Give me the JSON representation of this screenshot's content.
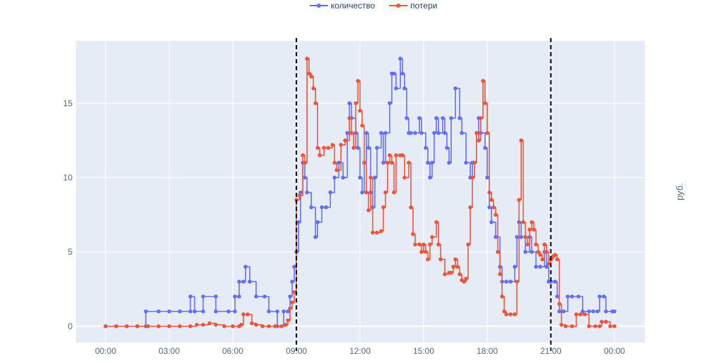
{
  "chart_data": {
    "type": "line",
    "xlabel": "",
    "ylabel": "",
    "y2label": "руб.",
    "xlim": [
      0,
      24
    ],
    "ylim": [
      -1.1,
      19.2
    ],
    "x_ticks": [
      {
        "value": 0,
        "label": "00:00"
      },
      {
        "value": 3,
        "label": "03:00"
      },
      {
        "value": 6,
        "label": "06:00"
      },
      {
        "value": 9,
        "label": "09:00"
      },
      {
        "value": 12,
        "label": "12:00"
      },
      {
        "value": 15,
        "label": "15:00"
      },
      {
        "value": 18,
        "label": "18:00"
      },
      {
        "value": 21,
        "label": "21:00"
      },
      {
        "value": 24,
        "label": "00:00"
      }
    ],
    "y_ticks": [
      0,
      5,
      10,
      15
    ],
    "grid": true,
    "legend": "top-center",
    "vertical_lines": [
      9,
      21
    ],
    "series": [
      {
        "name": "количество",
        "color": "#636efa",
        "points": [
          [
            0,
            0
          ],
          [
            0.5,
            0
          ],
          [
            1,
            0
          ],
          [
            1.5,
            0
          ],
          [
            1.9,
            0
          ],
          [
            1.9,
            1
          ],
          [
            2.5,
            1
          ],
          [
            3,
            1
          ],
          [
            3.5,
            1
          ],
          [
            4,
            1
          ],
          [
            4,
            2
          ],
          [
            4.2,
            1
          ],
          [
            4.6,
            1
          ],
          [
            4.6,
            2
          ],
          [
            5.2,
            2
          ],
          [
            5.2,
            1
          ],
          [
            5.8,
            1
          ],
          [
            6.1,
            1
          ],
          [
            6.1,
            2
          ],
          [
            6.3,
            2
          ],
          [
            6.3,
            3
          ],
          [
            6.5,
            3
          ],
          [
            6.6,
            4
          ],
          [
            6.8,
            3
          ],
          [
            7.1,
            2
          ],
          [
            7.5,
            2
          ],
          [
            7.7,
            1
          ],
          [
            8.1,
            1
          ],
          [
            8.1,
            0
          ],
          [
            8.3,
            0
          ],
          [
            8.4,
            1
          ],
          [
            8.6,
            1
          ],
          [
            8.7,
            2
          ],
          [
            8.8,
            3
          ],
          [
            8.9,
            4
          ],
          [
            9.0,
            5
          ],
          [
            9.1,
            7
          ],
          [
            9.2,
            9
          ],
          [
            9.3,
            11
          ],
          [
            9.4,
            10
          ],
          [
            9.5,
            9
          ],
          [
            9.7,
            8
          ],
          [
            9.9,
            6
          ],
          [
            10.0,
            7
          ],
          [
            10.2,
            8
          ],
          [
            10.4,
            8
          ],
          [
            10.6,
            9
          ],
          [
            10.8,
            10
          ],
          [
            11.0,
            11
          ],
          [
            11.2,
            10
          ],
          [
            11.4,
            13
          ],
          [
            11.5,
            15
          ],
          [
            11.6,
            14
          ],
          [
            11.8,
            13
          ],
          [
            11.9,
            12
          ],
          [
            12.0,
            10
          ],
          [
            12.1,
            9
          ],
          [
            12.2,
            11
          ],
          [
            12.3,
            13
          ],
          [
            12.4,
            12
          ],
          [
            12.5,
            9
          ],
          [
            12.6,
            8
          ],
          [
            12.7,
            10
          ],
          [
            12.8,
            12
          ],
          [
            13.0,
            13
          ],
          [
            13.1,
            11
          ],
          [
            13.2,
            13
          ],
          [
            13.4,
            15
          ],
          [
            13.5,
            17
          ],
          [
            13.6,
            17
          ],
          [
            13.7,
            16
          ],
          [
            13.9,
            18
          ],
          [
            14.0,
            17
          ],
          [
            14.1,
            16
          ],
          [
            14.2,
            14
          ],
          [
            14.3,
            13
          ],
          [
            14.4,
            13
          ],
          [
            14.6,
            13
          ],
          [
            14.8,
            14
          ],
          [
            14.9,
            13
          ],
          [
            15.1,
            12
          ],
          [
            15.2,
            11
          ],
          [
            15.3,
            10
          ],
          [
            15.4,
            11
          ],
          [
            15.5,
            13
          ],
          [
            15.6,
            14
          ],
          [
            15.7,
            13
          ],
          [
            15.9,
            14
          ],
          [
            16.0,
            13
          ],
          [
            16.1,
            12
          ],
          [
            16.2,
            11
          ],
          [
            16.3,
            14
          ],
          [
            16.5,
            16
          ],
          [
            16.7,
            14
          ],
          [
            16.8,
            13
          ],
          [
            17.0,
            11
          ],
          [
            17.2,
            10
          ],
          [
            17.3,
            11
          ],
          [
            17.5,
            13
          ],
          [
            17.6,
            14
          ],
          [
            17.7,
            13
          ],
          [
            17.9,
            12
          ],
          [
            18.0,
            10
          ],
          [
            18.1,
            8
          ],
          [
            18.2,
            7
          ],
          [
            18.4,
            6
          ],
          [
            18.6,
            4
          ],
          [
            18.7,
            3
          ],
          [
            18.9,
            3
          ],
          [
            19.1,
            3
          ],
          [
            19.3,
            4
          ],
          [
            19.4,
            6
          ],
          [
            19.5,
            7
          ],
          [
            19.6,
            6
          ],
          [
            19.8,
            5
          ],
          [
            20.0,
            6
          ],
          [
            20.1,
            5
          ],
          [
            20.3,
            4
          ],
          [
            20.5,
            4
          ],
          [
            20.7,
            5
          ],
          [
            20.8,
            4
          ],
          [
            20.9,
            3
          ],
          [
            21.0,
            3
          ],
          [
            21.2,
            3
          ],
          [
            21.3,
            2
          ],
          [
            21.4,
            1
          ],
          [
            21.6,
            1
          ],
          [
            21.8,
            2
          ],
          [
            22.0,
            2
          ],
          [
            22.3,
            2
          ],
          [
            22.5,
            1
          ],
          [
            22.8,
            1
          ],
          [
            23.0,
            1
          ],
          [
            23.2,
            1
          ],
          [
            23.3,
            2
          ],
          [
            23.5,
            2
          ],
          [
            23.6,
            1
          ],
          [
            23.9,
            1
          ],
          [
            24.0,
            1
          ]
        ]
      },
      {
        "name": "потери",
        "color": "#ef553b",
        "points": [
          [
            0,
            0
          ],
          [
            0.5,
            0
          ],
          [
            1,
            0
          ],
          [
            1.5,
            0
          ],
          [
            2,
            0
          ],
          [
            2.5,
            0
          ],
          [
            3,
            0
          ],
          [
            3.5,
            0
          ],
          [
            4,
            0
          ],
          [
            4.3,
            0.1
          ],
          [
            4.6,
            0.1
          ],
          [
            4.9,
            0.2
          ],
          [
            5.2,
            0.1
          ],
          [
            5.6,
            0
          ],
          [
            6,
            0
          ],
          [
            6.3,
            0
          ],
          [
            6.4,
            0.1
          ],
          [
            6.5,
            0.8
          ],
          [
            6.7,
            0.8
          ],
          [
            6.9,
            0.2
          ],
          [
            7.1,
            0.1
          ],
          [
            7.4,
            0
          ],
          [
            7.7,
            0
          ],
          [
            8.0,
            0
          ],
          [
            8.3,
            0
          ],
          [
            8.5,
            0.1
          ],
          [
            8.6,
            0.4
          ],
          [
            8.7,
            1.2
          ],
          [
            8.8,
            1.6
          ],
          [
            8.9,
            2.3
          ],
          [
            9.0,
            8.5
          ],
          [
            9.15,
            8.8
          ],
          [
            9.3,
            11.5
          ],
          [
            9.4,
            11
          ],
          [
            9.5,
            18
          ],
          [
            9.6,
            17
          ],
          [
            9.7,
            16.8
          ],
          [
            9.8,
            16
          ],
          [
            9.9,
            15
          ],
          [
            10.0,
            12
          ],
          [
            10.1,
            11.5
          ],
          [
            10.3,
            12
          ],
          [
            10.5,
            12
          ],
          [
            10.7,
            12.2
          ],
          [
            10.8,
            11
          ],
          [
            10.9,
            10.5
          ],
          [
            11.1,
            12.2
          ],
          [
            11.3,
            12.5
          ],
          [
            11.5,
            14
          ],
          [
            11.6,
            13
          ],
          [
            11.7,
            12
          ],
          [
            11.8,
            15
          ],
          [
            11.9,
            16.5
          ],
          [
            12.0,
            14.5
          ],
          [
            12.1,
            13.5
          ],
          [
            12.2,
            11
          ],
          [
            12.3,
            9
          ],
          [
            12.4,
            7.8
          ],
          [
            12.5,
            10
          ],
          [
            12.6,
            6.3
          ],
          [
            12.8,
            6.3
          ],
          [
            13.0,
            6.4
          ],
          [
            13.1,
            8
          ],
          [
            13.2,
            9
          ],
          [
            13.3,
            11
          ],
          [
            13.4,
            11.5
          ],
          [
            13.5,
            11
          ],
          [
            13.6,
            9
          ],
          [
            13.7,
            11.5
          ],
          [
            13.9,
            11.5
          ],
          [
            14.0,
            11.5
          ],
          [
            14.1,
            10
          ],
          [
            14.3,
            11
          ],
          [
            14.4,
            8
          ],
          [
            14.5,
            6.2
          ],
          [
            14.6,
            5.5
          ],
          [
            14.8,
            5.5
          ],
          [
            14.9,
            5
          ],
          [
            15.0,
            5.5
          ],
          [
            15.1,
            5
          ],
          [
            15.2,
            4.5
          ],
          [
            15.3,
            5.5
          ],
          [
            15.4,
            6
          ],
          [
            15.6,
            7
          ],
          [
            15.7,
            5.5
          ],
          [
            15.8,
            4.5
          ],
          [
            16.0,
            3.5
          ],
          [
            16.2,
            3.6
          ],
          [
            16.3,
            3.6
          ],
          [
            16.4,
            4
          ],
          [
            16.5,
            4.5
          ],
          [
            16.6,
            4
          ],
          [
            16.7,
            3.5
          ],
          [
            16.8,
            3.1
          ],
          [
            16.9,
            3
          ],
          [
            17.0,
            3.2
          ],
          [
            17.1,
            5.5
          ],
          [
            17.2,
            8
          ],
          [
            17.3,
            10
          ],
          [
            17.4,
            11
          ],
          [
            17.5,
            13
          ],
          [
            17.6,
            12.5
          ],
          [
            17.7,
            14
          ],
          [
            17.8,
            16.5
          ],
          [
            17.9,
            15
          ],
          [
            18.0,
            13
          ],
          [
            18.1,
            9
          ],
          [
            18.2,
            8.5
          ],
          [
            18.3,
            8
          ],
          [
            18.4,
            7.5
          ],
          [
            18.5,
            5
          ],
          [
            18.6,
            3.5
          ],
          [
            18.7,
            2
          ],
          [
            18.8,
            1
          ],
          [
            18.9,
            0.8
          ],
          [
            19.1,
            0.8
          ],
          [
            19.3,
            0.8
          ],
          [
            19.4,
            3
          ],
          [
            19.5,
            8.5
          ],
          [
            19.6,
            12.5
          ],
          [
            19.7,
            7
          ],
          [
            19.8,
            6
          ],
          [
            19.9,
            5.5
          ],
          [
            20.0,
            6.5
          ],
          [
            20.1,
            7
          ],
          [
            20.2,
            6.5
          ],
          [
            20.3,
            5.5
          ],
          [
            20.4,
            5
          ],
          [
            20.5,
            4.8
          ],
          [
            20.6,
            4.5
          ],
          [
            20.7,
            5.5
          ],
          [
            20.8,
            5
          ],
          [
            20.9,
            4.2
          ],
          [
            21.0,
            4.5
          ],
          [
            21.1,
            4.7
          ],
          [
            21.2,
            4.8
          ],
          [
            21.3,
            4.5
          ],
          [
            21.4,
            1.5
          ],
          [
            21.5,
            0.1
          ],
          [
            21.7,
            0
          ],
          [
            22.0,
            0
          ],
          [
            22.2,
            0.8
          ],
          [
            22.4,
            0.8
          ],
          [
            22.6,
            0.8
          ],
          [
            22.8,
            0
          ],
          [
            23.1,
            0
          ],
          [
            23.3,
            0
          ],
          [
            23.4,
            0.3
          ],
          [
            23.6,
            0.3
          ],
          [
            23.8,
            0
          ],
          [
            24.0,
            0
          ]
        ]
      }
    ]
  }
}
